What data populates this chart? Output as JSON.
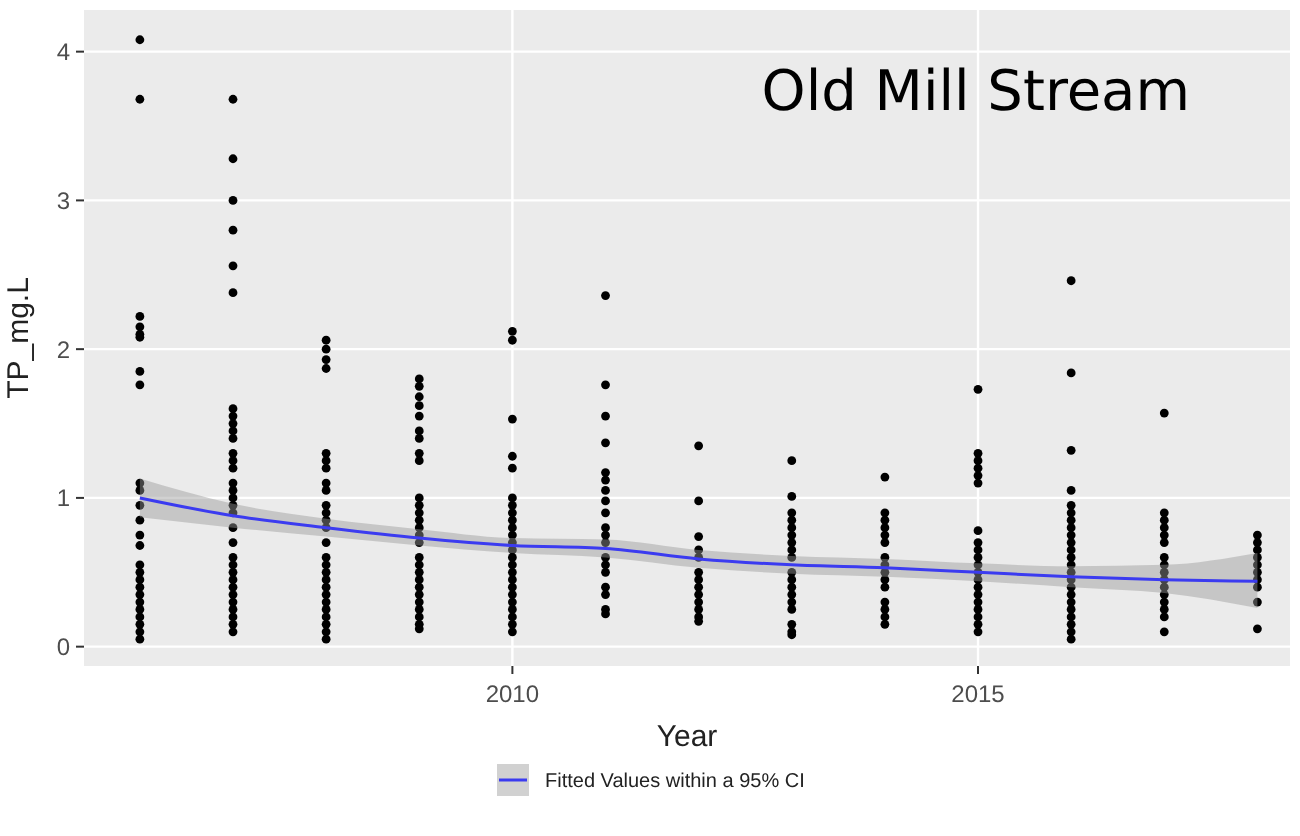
{
  "chart_data": {
    "type": "scatter",
    "title": "Old Mill Stream",
    "xlabel": "Year",
    "ylabel": "TP_mg.L",
    "xlim": [
      2005.4,
      2018.35
    ],
    "xticks": [
      2010,
      2015
    ],
    "ylim": [
      -0.13,
      4.28
    ],
    "yticks": [
      0,
      1,
      2,
      3,
      4
    ],
    "grid": true,
    "legend": "bottom",
    "series": [
      {
        "marker": "circle",
        "color": "#000000",
        "x": [
          2006,
          2006,
          2006,
          2006,
          2006,
          2006,
          2006,
          2006,
          2006,
          2006,
          2006,
          2006,
          2006,
          2006,
          2006,
          2006,
          2006,
          2006,
          2006,
          2006,
          2006,
          2006,
          2006,
          2006,
          2006,
          2007,
          2007,
          2007,
          2007,
          2007,
          2007,
          2007,
          2007,
          2007,
          2007,
          2007,
          2007,
          2007,
          2007,
          2007,
          2007,
          2007,
          2007,
          2007,
          2007,
          2007,
          2007,
          2007,
          2007,
          2007,
          2007,
          2007,
          2007,
          2007,
          2007,
          2007,
          2007,
          2008,
          2008,
          2008,
          2008,
          2008,
          2008,
          2008,
          2008,
          2008,
          2008,
          2008,
          2008,
          2008,
          2008,
          2008,
          2008,
          2008,
          2008,
          2008,
          2008,
          2008,
          2008,
          2008,
          2008,
          2008,
          2008,
          2009,
          2009,
          2009,
          2009,
          2009,
          2009,
          2009,
          2009,
          2009,
          2009,
          2009,
          2009,
          2009,
          2009,
          2009,
          2009,
          2009,
          2009,
          2009,
          2009,
          2009,
          2009,
          2009,
          2009,
          2009,
          2009,
          2009,
          2010,
          2010,
          2010,
          2010,
          2010,
          2010,
          2010,
          2010,
          2010,
          2010,
          2010,
          2010,
          2010,
          2010,
          2010,
          2010,
          2010,
          2010,
          2010,
          2010,
          2010,
          2010,
          2010,
          2010,
          2011,
          2011,
          2011,
          2011,
          2011,
          2011,
          2011,
          2011,
          2011,
          2011,
          2011,
          2011,
          2011,
          2011,
          2011,
          2011,
          2011,
          2011,
          2011,
          2012,
          2012,
          2012,
          2012,
          2012,
          2012,
          2012,
          2012,
          2012,
          2012,
          2012,
          2012,
          2012,
          2013,
          2013,
          2013,
          2013,
          2013,
          2013,
          2013,
          2013,
          2013,
          2013,
          2013,
          2013,
          2013,
          2013,
          2013,
          2013,
          2013,
          2013,
          2014,
          2014,
          2014,
          2014,
          2014,
          2014,
          2014,
          2014,
          2014,
          2014,
          2014,
          2014,
          2014,
          2014,
          2014,
          2015,
          2015,
          2015,
          2015,
          2015,
          2015,
          2015,
          2015,
          2015,
          2015,
          2015,
          2015,
          2015,
          2015,
          2015,
          2015,
          2015,
          2015,
          2015,
          2015,
          2016,
          2016,
          2016,
          2016,
          2016,
          2016,
          2016,
          2016,
          2016,
          2016,
          2016,
          2016,
          2016,
          2016,
          2016,
          2016,
          2016,
          2016,
          2016,
          2016,
          2016,
          2016,
          2016,
          2017,
          2017,
          2017,
          2017,
          2017,
          2017,
          2017,
          2017,
          2017,
          2017,
          2017,
          2017,
          2017,
          2017,
          2017,
          2017,
          2018,
          2018,
          2018,
          2018,
          2018,
          2018,
          2018,
          2018,
          2018,
          2018
        ],
        "values": [
          4.08,
          3.68,
          2.22,
          2.15,
          2.1,
          2.08,
          1.85,
          1.76,
          1.1,
          1.05,
          0.95,
          0.85,
          0.75,
          0.68,
          0.55,
          0.5,
          0.45,
          0.4,
          0.35,
          0.3,
          0.25,
          0.2,
          0.15,
          0.1,
          0.05,
          3.68,
          3.28,
          3.0,
          2.8,
          2.56,
          2.38,
          1.6,
          1.55,
          1.5,
          1.45,
          1.4,
          1.3,
          1.25,
          1.2,
          1.1,
          1.05,
          1.0,
          0.95,
          0.9,
          0.8,
          0.7,
          0.6,
          0.55,
          0.5,
          0.45,
          0.4,
          0.35,
          0.3,
          0.25,
          0.2,
          0.15,
          0.1,
          2.06,
          2.0,
          1.93,
          1.87,
          1.3,
          1.25,
          1.2,
          1.1,
          1.05,
          0.95,
          0.9,
          0.85,
          0.8,
          0.7,
          0.6,
          0.55,
          0.5,
          0.45,
          0.4,
          0.35,
          0.3,
          0.25,
          0.2,
          0.15,
          0.1,
          0.05,
          1.8,
          1.75,
          1.68,
          1.62,
          1.55,
          1.45,
          1.4,
          1.3,
          1.25,
          1.0,
          0.95,
          0.9,
          0.85,
          0.8,
          0.75,
          0.7,
          0.6,
          0.55,
          0.5,
          0.45,
          0.4,
          0.35,
          0.3,
          0.25,
          0.2,
          0.15,
          0.12,
          2.12,
          2.06,
          1.53,
          1.28,
          1.2,
          1.0,
          0.95,
          0.9,
          0.85,
          0.8,
          0.75,
          0.7,
          0.65,
          0.6,
          0.55,
          0.5,
          0.45,
          0.4,
          0.35,
          0.3,
          0.25,
          0.2,
          0.15,
          0.1,
          2.36,
          1.76,
          1.55,
          1.37,
          1.17,
          1.12,
          1.05,
          0.98,
          0.9,
          0.8,
          0.75,
          0.7,
          0.6,
          0.55,
          0.5,
          0.4,
          0.35,
          0.25,
          0.22,
          1.35,
          0.98,
          0.74,
          0.65,
          0.6,
          0.5,
          0.45,
          0.4,
          0.35,
          0.3,
          0.25,
          0.2,
          0.17,
          1.25,
          1.01,
          0.9,
          0.85,
          0.8,
          0.75,
          0.7,
          0.65,
          0.6,
          0.5,
          0.45,
          0.4,
          0.35,
          0.3,
          0.25,
          0.15,
          0.1,
          0.08,
          1.14,
          0.9,
          0.85,
          0.8,
          0.75,
          0.7,
          0.6,
          0.55,
          0.5,
          0.45,
          0.4,
          0.3,
          0.25,
          0.2,
          0.15,
          1.73,
          1.3,
          1.25,
          1.2,
          1.15,
          1.1,
          0.78,
          0.7,
          0.65,
          0.6,
          0.55,
          0.5,
          0.45,
          0.4,
          0.35,
          0.3,
          0.25,
          0.2,
          0.15,
          0.1,
          2.46,
          1.84,
          1.32,
          1.05,
          0.95,
          0.9,
          0.85,
          0.8,
          0.75,
          0.7,
          0.65,
          0.6,
          0.55,
          0.5,
          0.45,
          0.4,
          0.35,
          0.3,
          0.25,
          0.2,
          0.15,
          0.1,
          0.05,
          1.57,
          0.9,
          0.85,
          0.8,
          0.75,
          0.7,
          0.6,
          0.55,
          0.5,
          0.45,
          0.4,
          0.35,
          0.3,
          0.25,
          0.2,
          0.1,
          0.75,
          0.7,
          0.65,
          0.6,
          0.55,
          0.5,
          0.45,
          0.4,
          0.3,
          0.12
        ]
      },
      {
        "type": "line",
        "marker": "none",
        "name": "Fitted Values within a 95% CI",
        "color": "#3b3bf0",
        "x": [
          2006,
          2007,
          2008,
          2009,
          2010,
          2011,
          2012,
          2013,
          2014,
          2015,
          2016,
          2017,
          2018
        ],
        "values": [
          1.0,
          0.88,
          0.8,
          0.73,
          0.68,
          0.66,
          0.59,
          0.55,
          0.53,
          0.5,
          0.47,
          0.45,
          0.44
        ],
        "lower": [
          0.87,
          0.8,
          0.74,
          0.68,
          0.63,
          0.6,
          0.53,
          0.49,
          0.47,
          0.44,
          0.4,
          0.36,
          0.26
        ],
        "upper": [
          1.13,
          0.96,
          0.86,
          0.79,
          0.73,
          0.72,
          0.65,
          0.61,
          0.59,
          0.56,
          0.54,
          0.55,
          0.63
        ]
      }
    ]
  }
}
